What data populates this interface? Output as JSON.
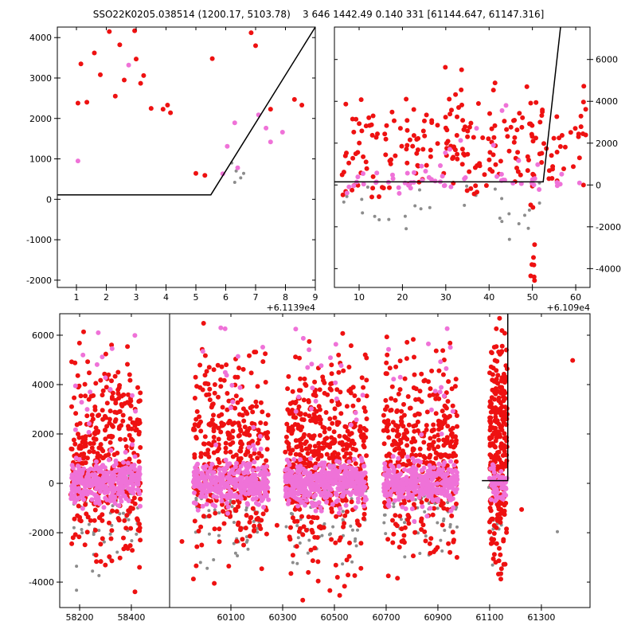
{
  "title": "SSO22K0205.038514 (1200.17, 5103.78)    3 646 1442.49 0.140 331 [61144.647, 61147.316]",
  "colors": {
    "red": "#ee1111",
    "magenta": "#ef72d8",
    "gray": "#8c8c8c",
    "line": "#000000",
    "background": "#ffffff"
  },
  "chart_data": [
    {
      "id": "top-left",
      "type": "scatter",
      "ylim": [
        -2180,
        4260
      ],
      "yticks": {
        "values": [
          -2000,
          -1000,
          0,
          1000,
          2000,
          3000,
          4000
        ],
        "labels": [
          "-2000",
          "-1000",
          "0",
          "1000",
          "2000",
          "3000",
          "4000"
        ]
      },
      "x_offset": "+6.1139e4",
      "panels": [
        {
          "xlim": [
            0.36,
            9.0
          ],
          "xticks": {
            "values": [
              1,
              2,
              3,
              4,
              5,
              6,
              7,
              8,
              9
            ],
            "labels": [
              "1",
              "2",
              "3",
              "4",
              "5",
              "6",
              "7",
              "8",
              "9"
            ]
          }
        }
      ],
      "lines": [
        {
          "panel": 0,
          "pts": [
            [
              0.36,
              110
            ],
            [
              5.5,
              110
            ],
            [
              9.0,
              4260
            ]
          ]
        }
      ],
      "points": [
        {
          "color": "red",
          "r": 3,
          "panel": 0,
          "xy": [
            [
              1.15,
              3350
            ],
            [
              1.35,
              2400
            ],
            [
              1.6,
              3620
            ],
            [
              1.8,
              3080
            ],
            [
              2.1,
              4150
            ],
            [
              2.45,
              3820
            ],
            [
              2.6,
              2950
            ],
            [
              2.3,
              2550
            ],
            [
              2.95,
              4170
            ],
            [
              3.0,
              3470
            ],
            [
              3.25,
              3060
            ],
            [
              3.15,
              2870
            ],
            [
              3.5,
              2250
            ],
            [
              3.9,
              2230
            ],
            [
              4.05,
              2330
            ],
            [
              4.15,
              2140
            ],
            [
              5.0,
              640
            ],
            [
              5.3,
              590
            ],
            [
              5.55,
              3480
            ],
            [
              6.85,
              4120
            ],
            [
              7.0,
              3800
            ],
            [
              7.5,
              2230
            ],
            [
              8.3,
              2470
            ],
            [
              8.55,
              2330
            ],
            [
              1.05,
              2380
            ]
          ]
        },
        {
          "color": "magenta",
          "r": 3,
          "panel": 0,
          "xy": [
            [
              1.05,
              950
            ],
            [
              2.75,
              3320
            ],
            [
              6.3,
              1890
            ],
            [
              7.1,
              2090
            ],
            [
              7.35,
              1760
            ],
            [
              7.5,
              1420
            ],
            [
              6.05,
              1310
            ],
            [
              5.9,
              630
            ],
            [
              6.4,
              780
            ],
            [
              7.9,
              1660
            ]
          ]
        },
        {
          "color": "gray",
          "r": 2,
          "panel": 0,
          "xy": [
            [
              6.2,
              900
            ],
            [
              6.35,
              700
            ],
            [
              6.5,
              530
            ],
            [
              6.3,
              420
            ],
            [
              6.6,
              640
            ]
          ]
        }
      ],
      "clusters": []
    },
    {
      "id": "top-right",
      "type": "scatter",
      "ylim": [
        -4900,
        7550
      ],
      "yticks": {
        "values": [
          -4000,
          -2000,
          0,
          2000,
          4000,
          6000
        ],
        "labels": [
          "-4000",
          "-2000",
          "0",
          "2000",
          "4000",
          "6000"
        ]
      },
      "x_offset": "+6.109e4",
      "panels": [
        {
          "xlim": [
            4.3,
            63.3
          ],
          "xticks": {
            "values": [
              10,
              20,
              30,
              40,
              50,
              60
            ],
            "labels": [
              "10",
              "20",
              "30",
              "40",
              "50",
              "60"
            ]
          }
        }
      ],
      "lines": [
        {
          "panel": 0,
          "pts": [
            [
              4.3,
              150
            ],
            [
              52.5,
              150
            ],
            [
              56.5,
              7550
            ]
          ]
        }
      ],
      "points": [],
      "clusters": [
        {
          "color": "gray",
          "n": 30,
          "r": 2,
          "panel": 0,
          "x": [
            6,
            53
          ],
          "ydist": "normal",
          "ymean": -900,
          "ysd": 700,
          "yclip": [
            -2700,
            250
          ],
          "seed": 21
        },
        {
          "color": "red",
          "n": 230,
          "r": 3,
          "panel": 0,
          "x": [
            6,
            62.5
          ],
          "ydist": "normal",
          "ymean": 1900,
          "ysd": 1400,
          "yclip": [
            -650,
            7000
          ],
          "seed": 22
        },
        {
          "color": "red",
          "n": 9,
          "r": 3,
          "panel": 0,
          "x": [
            49.5,
            50.7
          ],
          "ydist": "uniform",
          "y": [
            -4600,
            -900
          ],
          "seed": 23
        },
        {
          "color": "magenta",
          "n": 55,
          "r": 3,
          "panel": 0,
          "x": [
            6,
            62
          ],
          "ydist": "normal",
          "ymean": 250,
          "ysd": 350,
          "yclip": [
            -600,
            1300
          ],
          "seed": 24
        },
        {
          "color": "magenta",
          "n": 7,
          "r": 3,
          "panel": 0,
          "x": [
            20,
            60
          ],
          "ydist": "uniform",
          "y": [
            1400,
            4300
          ],
          "seed": 25
        }
      ]
    },
    {
      "id": "bottom",
      "type": "scatter",
      "ylim": [
        -5030,
        6870
      ],
      "yticks": {
        "values": [
          -4000,
          -2000,
          0,
          2000,
          4000,
          6000
        ],
        "labels": [
          "-4000",
          "-2000",
          "0",
          "2000",
          "4000",
          "6000"
        ]
      },
      "x_offset": "",
      "panels": [
        {
          "xlim": [
            58123,
            58548
          ],
          "xticks": {
            "values": [
              58200,
              58400
            ],
            "labels": [
              "58200",
              "58400"
            ]
          }
        },
        {
          "xlim": [
            59863,
            61488
          ],
          "xticks": {
            "values": [
              60100,
              60300,
              60500,
              60700,
              60900,
              61100,
              61300
            ],
            "labels": [
              "60100",
              "60300",
              "60500",
              "60700",
              "60900",
              "61100",
              "61300"
            ]
          }
        }
      ],
      "lines": [
        {
          "panel": 1,
          "pts": [
            [
              61070,
              110
            ],
            [
              61170,
              110
            ],
            [
              61170,
              6870
            ]
          ]
        }
      ],
      "points": [],
      "clusters": [
        {
          "color": "gray",
          "n": 70,
          "r": 2,
          "panel": 0,
          "x": [
            58165,
            58435
          ],
          "ydist": "normal",
          "ymean": -900,
          "ysd": 1200,
          "yclip": [
            -4400,
            800
          ],
          "seed": 31
        },
        {
          "color": "red",
          "n": 380,
          "r": 3,
          "panel": 0,
          "x": [
            58165,
            58435
          ],
          "ydist": "normal",
          "ymean": 1000,
          "ysd": 1900,
          "yclip": [
            -4800,
            6860
          ],
          "seed": 32
        },
        {
          "color": "magenta",
          "n": 330,
          "r": 3,
          "panel": 0,
          "x": [
            58165,
            58435
          ],
          "ydist": "normal",
          "ymean": 0,
          "ysd": 420,
          "yclip": [
            -1600,
            3000
          ],
          "seed": 33
        },
        {
          "color": "magenta",
          "n": 18,
          "r": 3,
          "panel": 0,
          "x": [
            58180,
            58420
          ],
          "ydist": "uniform",
          "y": [
            1500,
            6300
          ],
          "seed": 34
        },
        {
          "color": "gray",
          "n": 60,
          "r": 2,
          "panel": 1,
          "x": [
            59955,
            60245
          ],
          "ydist": "normal",
          "ymean": -900,
          "ysd": 1200,
          "yclip": [
            -4400,
            800
          ],
          "seed": 41
        },
        {
          "color": "red",
          "n": 380,
          "r": 3,
          "panel": 1,
          "x": [
            59955,
            60245
          ],
          "ydist": "normal",
          "ymean": 1000,
          "ysd": 1900,
          "yclip": [
            -4800,
            6860
          ],
          "seed": 42
        },
        {
          "color": "magenta",
          "n": 320,
          "r": 3,
          "panel": 1,
          "x": [
            59955,
            60245
          ],
          "ydist": "normal",
          "ymean": 0,
          "ysd": 420,
          "yclip": [
            -1600,
            3000
          ],
          "seed": 43
        },
        {
          "color": "magenta",
          "n": 15,
          "r": 3,
          "panel": 1,
          "x": [
            59970,
            60230
          ],
          "ydist": "uniform",
          "y": [
            1500,
            6300
          ],
          "seed": 44
        },
        {
          "color": "gray",
          "n": 80,
          "r": 2,
          "panel": 1,
          "x": [
            60310,
            60625
          ],
          "ydist": "normal",
          "ymean": -900,
          "ysd": 1200,
          "yclip": [
            -4400,
            800
          ],
          "seed": 51
        },
        {
          "color": "red",
          "n": 500,
          "r": 3,
          "panel": 1,
          "x": [
            60310,
            60625
          ],
          "ydist": "normal",
          "ymean": 1000,
          "ysd": 1900,
          "yclip": [
            -4800,
            6860
          ],
          "seed": 52
        },
        {
          "color": "magenta",
          "n": 430,
          "r": 3,
          "panel": 1,
          "x": [
            60310,
            60625
          ],
          "ydist": "normal",
          "ymean": 0,
          "ysd": 420,
          "yclip": [
            -1600,
            3000
          ],
          "seed": 53
        },
        {
          "color": "magenta",
          "n": 20,
          "r": 3,
          "panel": 1,
          "x": [
            60320,
            60615
          ],
          "ydist": "uniform",
          "y": [
            1500,
            6300
          ],
          "seed": 54
        },
        {
          "color": "gray",
          "n": 65,
          "r": 2,
          "panel": 1,
          "x": [
            60690,
            60975
          ],
          "ydist": "normal",
          "ymean": -900,
          "ysd": 1200,
          "yclip": [
            -4400,
            800
          ],
          "seed": 61
        },
        {
          "color": "red",
          "n": 400,
          "r": 3,
          "panel": 1,
          "x": [
            60690,
            60975
          ],
          "ydist": "normal",
          "ymean": 1000,
          "ysd": 1900,
          "yclip": [
            -4800,
            6860
          ],
          "seed": 62
        },
        {
          "color": "magenta",
          "n": 340,
          "r": 3,
          "panel": 1,
          "x": [
            60690,
            60975
          ],
          "ydist": "normal",
          "ymean": 0,
          "ysd": 420,
          "yclip": [
            -1600,
            3000
          ],
          "seed": 63
        },
        {
          "color": "magenta",
          "n": 16,
          "r": 3,
          "panel": 1,
          "x": [
            60700,
            60965
          ],
          "ydist": "uniform",
          "y": [
            1500,
            6300
          ],
          "seed": 64
        },
        {
          "color": "gray",
          "n": 12,
          "r": 2,
          "panel": 1,
          "x": [
            61100,
            61168
          ],
          "ydist": "normal",
          "ymean": -1500,
          "ysd": 1200,
          "yclip": [
            -4500,
            0
          ],
          "seed": 71
        },
        {
          "color": "red",
          "n": 270,
          "r": 3,
          "panel": 1,
          "x": [
            61100,
            61168
          ],
          "ydist": "normal",
          "ymean": 1500,
          "ysd": 2600,
          "yclip": [
            -4800,
            6860
          ],
          "seed": 72
        },
        {
          "color": "magenta",
          "n": 60,
          "r": 3,
          "panel": 1,
          "x": [
            61100,
            61168
          ],
          "ydist": "normal",
          "ymean": 0,
          "ysd": 350,
          "yclip": [
            -900,
            1200
          ],
          "seed": 73
        },
        {
          "color": "red",
          "n": 8,
          "r": 3,
          "panel": 1,
          "x": [
            59900,
            61480
          ],
          "ydist": "uniform",
          "y": [
            -4500,
            6500
          ],
          "seed": 81
        },
        {
          "color": "gray",
          "n": 6,
          "r": 2,
          "panel": 1,
          "x": [
            59900,
            61480
          ],
          "ydist": "uniform",
          "y": [
            -3500,
            500
          ],
          "seed": 82
        }
      ]
    }
  ]
}
